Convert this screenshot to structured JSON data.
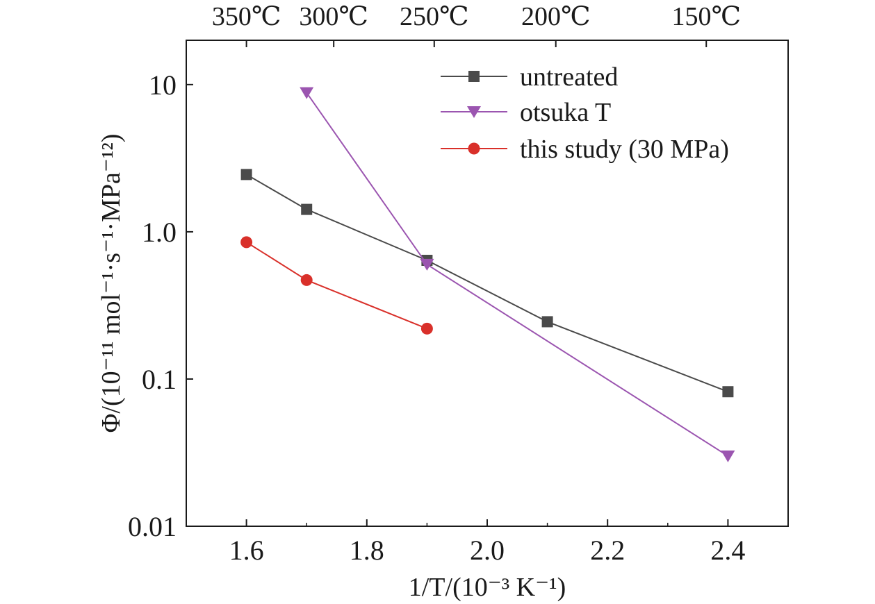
{
  "chart_data": {
    "type": "line",
    "xlabel": "1/T/(10⁻³ K⁻¹)",
    "ylabel": "Φ/(10⁻¹¹ mol⁻¹·s⁻¹·MPa⁻¹²)",
    "xlim": [
      1.5,
      2.5
    ],
    "ylim": [
      0.01,
      20
    ],
    "yscale": "log",
    "grid": false,
    "legend_position": "top-right",
    "x_ticks": [
      1.6,
      1.8,
      2.0,
      2.2,
      2.4
    ],
    "x_tick_labels": [
      "1.6",
      "1.8",
      "2.0",
      "2.2",
      "2.4"
    ],
    "y_ticks": [
      0.01,
      0.1,
      1.0,
      10
    ],
    "y_tick_labels": [
      "0.01",
      "0.1",
      "1.0",
      "10"
    ],
    "top_axis": {
      "ticks": [
        1.6,
        1.745,
        1.912,
        2.114,
        2.364
      ],
      "labels": [
        "350℃",
        "300℃",
        "250℃",
        "200℃",
        "150℃"
      ]
    },
    "series": [
      {
        "name": "untreated",
        "marker": "square",
        "color": "#4a4a4a",
        "x": [
          1.6,
          1.7,
          1.9,
          2.1,
          2.4
        ],
        "y": [
          2.45,
          1.42,
          0.64,
          0.245,
          0.082
        ]
      },
      {
        "name": "otsuka T",
        "marker": "triangle-down",
        "color": "#9b55b0",
        "x": [
          1.7,
          1.9,
          2.4
        ],
        "y": [
          8.8,
          0.6,
          0.03
        ]
      },
      {
        "name": "this study (30 MPa)",
        "marker": "circle",
        "color": "#d9302a",
        "x": [
          1.6,
          1.7,
          1.9
        ],
        "y": [
          0.85,
          0.47,
          0.22
        ]
      }
    ]
  }
}
